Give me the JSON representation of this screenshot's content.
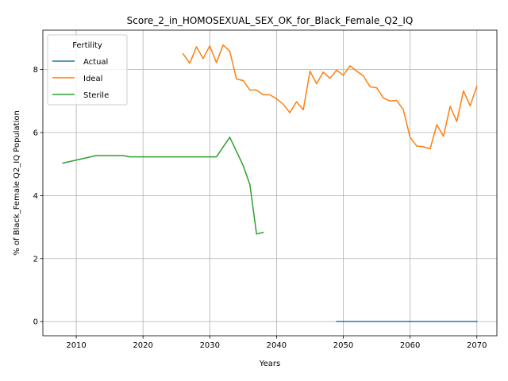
{
  "chart_data": {
    "type": "line",
    "title": "Score_2_in_HOMOSEXUAL_SEX_OK_for_Black_Female_Q2_IQ",
    "xlabel": "Years",
    "ylabel": "% of Black_Female Q2_IQ Population",
    "xlim": [
      2005,
      2073
    ],
    "ylim": [
      -0.45,
      9.25
    ],
    "xticks": [
      2010,
      2020,
      2030,
      2040,
      2050,
      2060,
      2070
    ],
    "yticks": [
      0,
      2,
      4,
      6,
      8
    ],
    "grid": true,
    "legend": {
      "title": "Fertility",
      "position": "top-left"
    },
    "series": [
      {
        "name": "Actual",
        "color": "#1f77b4",
        "x": [
          2049,
          2050,
          2051,
          2052,
          2053,
          2054,
          2055,
          2056,
          2057,
          2058,
          2059,
          2060,
          2061,
          2062,
          2063,
          2064,
          2065,
          2066,
          2067,
          2068,
          2069,
          2070
        ],
        "y": [
          0,
          0,
          0,
          0,
          0,
          0,
          0,
          0,
          0,
          0,
          0,
          0,
          0,
          0,
          0,
          0,
          0,
          0,
          0,
          0,
          0,
          0
        ]
      },
      {
        "name": "Ideal",
        "color": "#ff7f0e",
        "x": [
          2026,
          2027,
          2028,
          2029,
          2030,
          2031,
          2032,
          2033,
          2034,
          2035,
          2036,
          2037,
          2038,
          2039,
          2040,
          2041,
          2042,
          2043,
          2044,
          2045,
          2046,
          2047,
          2048,
          2049,
          2050,
          2051,
          2052,
          2053,
          2054,
          2055,
          2056,
          2057,
          2058,
          2059,
          2060,
          2061,
          2062,
          2063,
          2064,
          2065,
          2066,
          2067,
          2068,
          2069,
          2070
        ],
        "y": [
          8.5,
          8.2,
          8.72,
          8.35,
          8.75,
          8.22,
          8.78,
          8.58,
          7.7,
          7.65,
          7.35,
          7.35,
          7.2,
          7.2,
          7.07,
          6.9,
          6.63,
          6.98,
          6.72,
          7.95,
          7.55,
          7.92,
          7.72,
          7.98,
          7.82,
          8.12,
          7.95,
          7.8,
          7.45,
          7.42,
          7.1,
          7.0,
          7.02,
          6.72,
          5.85,
          5.57,
          5.55,
          5.48,
          6.25,
          5.88,
          6.83,
          6.35,
          7.32,
          6.85,
          7.48
        ]
      },
      {
        "name": "Sterile",
        "color": "#2ca02c",
        "x": [
          2008,
          2013,
          2017,
          2018,
          2031,
          2033,
          2035,
          2036,
          2037,
          2038
        ],
        "y": [
          5.03,
          5.27,
          5.27,
          5.23,
          5.23,
          5.85,
          4.95,
          4.35,
          2.78,
          2.83
        ]
      }
    ]
  }
}
